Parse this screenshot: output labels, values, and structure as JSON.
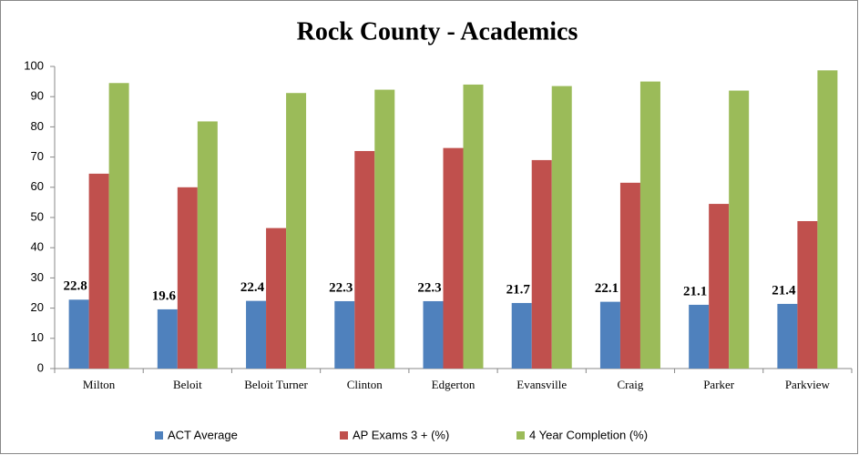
{
  "chart_data": {
    "type": "bar",
    "title": "Rock County - Academics",
    "categories": [
      "Milton",
      "Beloit",
      "Beloit Turner",
      "Clinton",
      "Edgerton",
      "Evansville",
      "Craig",
      "Parker",
      "Parkview"
    ],
    "series": [
      {
        "name": "ACT Average",
        "color": "#4f81bd",
        "values": [
          22.8,
          19.6,
          22.4,
          22.3,
          22.3,
          21.7,
          22.1,
          21.1,
          21.4
        ],
        "data_labels": true
      },
      {
        "name": "AP Exams 3 + (%)",
        "color": "#c0504d",
        "values": [
          64.5,
          60,
          46.5,
          72,
          73,
          69,
          61.5,
          54.5,
          48.8
        ]
      },
      {
        "name": "4 Year Completion (%)",
        "color": "#9bbb59",
        "values": [
          94.5,
          81.8,
          91.2,
          92.3,
          94,
          93.5,
          95,
          92,
          98.7
        ]
      }
    ],
    "ylim": [
      0,
      100
    ],
    "yticks": [
      0,
      10,
      20,
      30,
      40,
      50,
      60,
      70,
      80,
      90,
      100
    ],
    "grid": false,
    "legend": "bottom"
  }
}
